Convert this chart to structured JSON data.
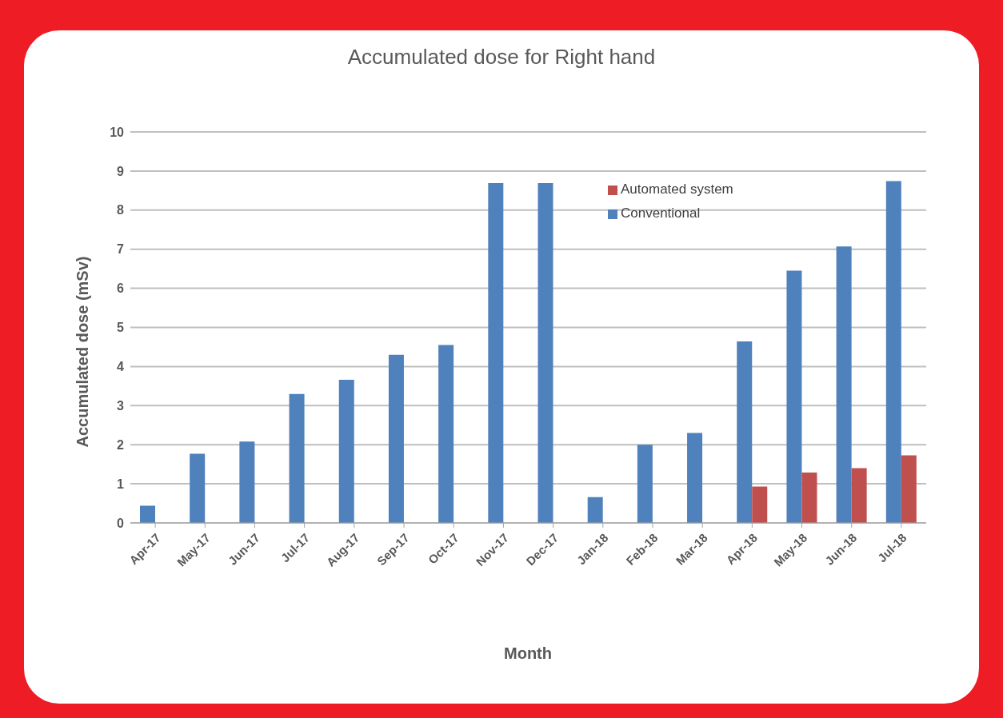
{
  "chart_data": {
    "type": "bar",
    "title": "Accumulated dose for Right hand",
    "xlabel": "Month",
    "ylabel": "Accumulated dose (mSv)",
    "categories": [
      "Apr-17",
      "May-17",
      "Jun-17",
      "Jul-17",
      "Aug-17",
      "Sep-17",
      "Oct-17",
      "Nov-17",
      "Dec-17",
      "Jan-18",
      "Feb-18",
      "Mar-18",
      "Apr-18",
      "May-18",
      "Jun-18",
      "Jul-18"
    ],
    "series": [
      {
        "name": "Conventional",
        "color": "#4f81bd",
        "values": [
          0.44,
          1.77,
          2.08,
          3.3,
          3.66,
          4.3,
          4.55,
          8.69,
          8.69,
          0.66,
          2.0,
          2.3,
          4.64,
          6.45,
          7.07,
          8.74
        ]
      },
      {
        "name": "Automated system",
        "color": "#c0504d",
        "values": [
          null,
          null,
          null,
          null,
          null,
          null,
          null,
          null,
          null,
          null,
          null,
          null,
          0.93,
          1.29,
          1.4,
          1.73
        ]
      }
    ],
    "ylim": [
      0,
      10
    ],
    "yticks": [
      0,
      1,
      2,
      3,
      4,
      5,
      6,
      7,
      8,
      9,
      10
    ],
    "grid": "y",
    "legend": "top right"
  }
}
